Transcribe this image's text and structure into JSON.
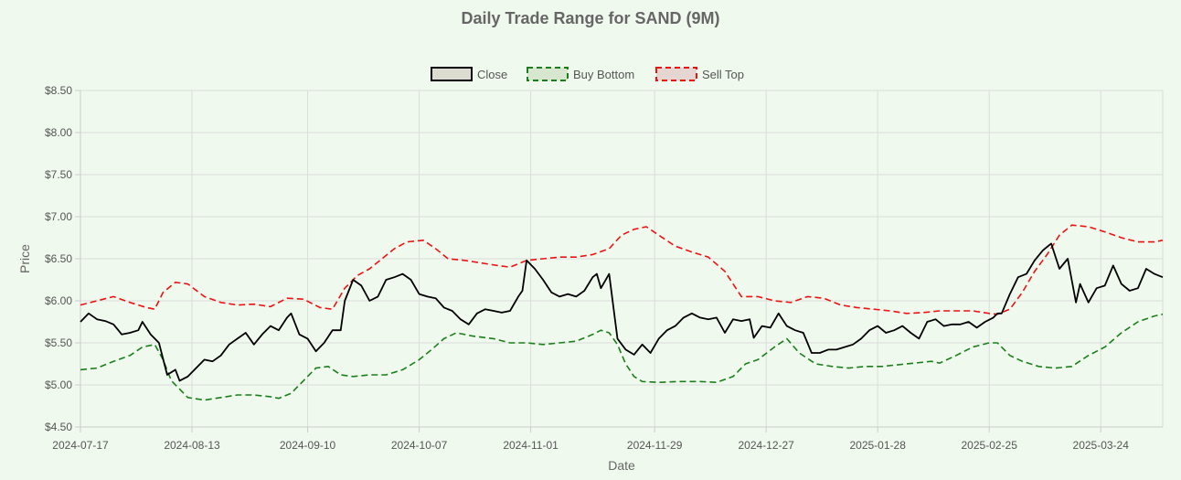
{
  "chart_data": {
    "type": "line",
    "title": "Daily Trade Range for SAND (9M)",
    "xlabel": "Date",
    "ylabel": "Price",
    "ylim": [
      4.5,
      8.5
    ],
    "y_ticks": [
      "$4.50",
      "$5.00",
      "$5.50",
      "$6.00",
      "$6.50",
      "$7.00",
      "$7.50",
      "$8.00",
      "$8.50"
    ],
    "y_tick_values": [
      4.5,
      5.0,
      5.5,
      6.0,
      6.5,
      7.0,
      7.5,
      8.0,
      8.5
    ],
    "x_tick_labels": [
      "2024-07-17",
      "2024-08-13",
      "2024-09-10",
      "2024-10-07",
      "2024-11-01",
      "2024-11-29",
      "2024-12-27",
      "2025-01-28",
      "2025-02-25",
      "2025-03-24"
    ],
    "x_tick_positions": [
      0,
      27,
      55,
      82,
      109,
      139,
      166,
      193,
      220,
      247
    ],
    "x_count": 262,
    "grid": true,
    "legend_position": "top",
    "colors": {
      "close": "#000000",
      "buy": "#1a7f1a",
      "sell": "#ee1111"
    },
    "series": [
      {
        "name": "Close",
        "key": "close",
        "points": [
          [
            0,
            5.75
          ],
          [
            2,
            5.85
          ],
          [
            4,
            5.78
          ],
          [
            6,
            5.76
          ],
          [
            8,
            5.72
          ],
          [
            10,
            5.6
          ],
          [
            12,
            5.62
          ],
          [
            14,
            5.65
          ],
          [
            15,
            5.75
          ],
          [
            17,
            5.6
          ],
          [
            19,
            5.5
          ],
          [
            21,
            5.12
          ],
          [
            23,
            5.18
          ],
          [
            24,
            5.05
          ],
          [
            26,
            5.1
          ],
          [
            28,
            5.2
          ],
          [
            30,
            5.3
          ],
          [
            32,
            5.28
          ],
          [
            34,
            5.35
          ],
          [
            36,
            5.48
          ],
          [
            38,
            5.55
          ],
          [
            40,
            5.62
          ],
          [
            42,
            5.48
          ],
          [
            44,
            5.6
          ],
          [
            46,
            5.7
          ],
          [
            48,
            5.65
          ],
          [
            50,
            5.8
          ],
          [
            51,
            5.85
          ],
          [
            53,
            5.6
          ],
          [
            55,
            5.55
          ],
          [
            57,
            5.4
          ],
          [
            59,
            5.5
          ],
          [
            61,
            5.65
          ],
          [
            63,
            5.65
          ],
          [
            64,
            6.0
          ],
          [
            66,
            6.25
          ],
          [
            68,
            6.18
          ],
          [
            70,
            6.0
          ],
          [
            72,
            6.05
          ],
          [
            74,
            6.25
          ],
          [
            76,
            6.28
          ],
          [
            78,
            6.32
          ],
          [
            80,
            6.25
          ],
          [
            82,
            6.08
          ],
          [
            84,
            6.05
          ],
          [
            86,
            6.03
          ],
          [
            88,
            5.92
          ],
          [
            90,
            5.88
          ],
          [
            92,
            5.78
          ],
          [
            94,
            5.72
          ],
          [
            96,
            5.85
          ],
          [
            98,
            5.9
          ],
          [
            100,
            5.88
          ],
          [
            102,
            5.86
          ],
          [
            104,
            5.88
          ],
          [
            106,
            6.05
          ],
          [
            107,
            6.12
          ],
          [
            108,
            6.48
          ],
          [
            110,
            6.38
          ],
          [
            112,
            6.25
          ],
          [
            114,
            6.1
          ],
          [
            116,
            6.05
          ],
          [
            118,
            6.08
          ],
          [
            120,
            6.05
          ],
          [
            122,
            6.12
          ],
          [
            124,
            6.28
          ],
          [
            125,
            6.32
          ],
          [
            126,
            6.15
          ],
          [
            128,
            6.32
          ],
          [
            130,
            5.55
          ],
          [
            132,
            5.42
          ],
          [
            134,
            5.36
          ],
          [
            136,
            5.48
          ],
          [
            138,
            5.38
          ],
          [
            140,
            5.55
          ],
          [
            142,
            5.65
          ],
          [
            144,
            5.7
          ],
          [
            146,
            5.8
          ],
          [
            148,
            5.85
          ],
          [
            150,
            5.8
          ],
          [
            152,
            5.78
          ],
          [
            154,
            5.8
          ],
          [
            156,
            5.62
          ],
          [
            158,
            5.78
          ],
          [
            160,
            5.76
          ],
          [
            162,
            5.78
          ],
          [
            163,
            5.56
          ],
          [
            165,
            5.7
          ],
          [
            167,
            5.68
          ],
          [
            169,
            5.85
          ],
          [
            171,
            5.7
          ],
          [
            173,
            5.65
          ],
          [
            175,
            5.62
          ],
          [
            177,
            5.38
          ],
          [
            179,
            5.38
          ],
          [
            181,
            5.42
          ],
          [
            183,
            5.42
          ],
          [
            185,
            5.45
          ],
          [
            187,
            5.48
          ],
          [
            189,
            5.55
          ],
          [
            191,
            5.65
          ],
          [
            193,
            5.7
          ],
          [
            195,
            5.62
          ],
          [
            197,
            5.65
          ],
          [
            199,
            5.7
          ],
          [
            201,
            5.62
          ],
          [
            203,
            5.55
          ],
          [
            205,
            5.75
          ],
          [
            207,
            5.78
          ],
          [
            209,
            5.7
          ],
          [
            211,
            5.72
          ],
          [
            213,
            5.72
          ],
          [
            215,
            5.75
          ],
          [
            217,
            5.68
          ],
          [
            219,
            5.75
          ],
          [
            221,
            5.8
          ],
          [
            222,
            5.85
          ],
          [
            223,
            5.85
          ],
          [
            225,
            6.08
          ],
          [
            227,
            6.28
          ],
          [
            229,
            6.32
          ],
          [
            231,
            6.48
          ],
          [
            233,
            6.6
          ],
          [
            235,
            6.68
          ],
          [
            237,
            6.38
          ],
          [
            239,
            6.5
          ],
          [
            241,
            5.98
          ],
          [
            242,
            6.2
          ],
          [
            244,
            5.98
          ],
          [
            246,
            6.15
          ],
          [
            248,
            6.18
          ],
          [
            250,
            6.42
          ],
          [
            252,
            6.2
          ],
          [
            254,
            6.12
          ],
          [
            256,
            6.15
          ],
          [
            258,
            6.38
          ],
          [
            260,
            6.32
          ],
          [
            262,
            6.28
          ]
        ]
      },
      {
        "name": "Buy Bottom",
        "key": "buy",
        "points": [
          [
            0,
            5.18
          ],
          [
            4,
            5.2
          ],
          [
            8,
            5.28
          ],
          [
            12,
            5.35
          ],
          [
            15,
            5.45
          ],
          [
            18,
            5.48
          ],
          [
            20,
            5.3
          ],
          [
            22,
            5.05
          ],
          [
            24,
            4.95
          ],
          [
            26,
            4.85
          ],
          [
            30,
            4.82
          ],
          [
            34,
            4.85
          ],
          [
            38,
            4.88
          ],
          [
            42,
            4.88
          ],
          [
            46,
            4.86
          ],
          [
            48,
            4.84
          ],
          [
            51,
            4.9
          ],
          [
            54,
            5.05
          ],
          [
            57,
            5.2
          ],
          [
            60,
            5.22
          ],
          [
            63,
            5.12
          ],
          [
            66,
            5.1
          ],
          [
            70,
            5.12
          ],
          [
            74,
            5.12
          ],
          [
            78,
            5.18
          ],
          [
            82,
            5.3
          ],
          [
            85,
            5.42
          ],
          [
            88,
            5.55
          ],
          [
            91,
            5.62
          ],
          [
            95,
            5.58
          ],
          [
            100,
            5.55
          ],
          [
            104,
            5.5
          ],
          [
            108,
            5.5
          ],
          [
            112,
            5.48
          ],
          [
            116,
            5.5
          ],
          [
            120,
            5.52
          ],
          [
            124,
            5.6
          ],
          [
            126,
            5.65
          ],
          [
            128,
            5.62
          ],
          [
            130,
            5.48
          ],
          [
            132,
            5.25
          ],
          [
            134,
            5.1
          ],
          [
            136,
            5.04
          ],
          [
            140,
            5.03
          ],
          [
            145,
            5.04
          ],
          [
            150,
            5.04
          ],
          [
            154,
            5.03
          ],
          [
            158,
            5.1
          ],
          [
            161,
            5.25
          ],
          [
            164,
            5.3
          ],
          [
            168,
            5.45
          ],
          [
            171,
            5.55
          ],
          [
            174,
            5.38
          ],
          [
            178,
            5.25
          ],
          [
            182,
            5.22
          ],
          [
            186,
            5.2
          ],
          [
            190,
            5.22
          ],
          [
            194,
            5.22
          ],
          [
            198,
            5.24
          ],
          [
            202,
            5.26
          ],
          [
            206,
            5.28
          ],
          [
            208,
            5.26
          ],
          [
            212,
            5.35
          ],
          [
            216,
            5.45
          ],
          [
            220,
            5.5
          ],
          [
            222,
            5.5
          ],
          [
            225,
            5.35
          ],
          [
            228,
            5.28
          ],
          [
            232,
            5.22
          ],
          [
            236,
            5.2
          ],
          [
            240,
            5.22
          ],
          [
            244,
            5.35
          ],
          [
            248,
            5.45
          ],
          [
            252,
            5.62
          ],
          [
            256,
            5.75
          ],
          [
            260,
            5.82
          ],
          [
            262,
            5.84
          ]
        ]
      },
      {
        "name": "Sell Top",
        "key": "sell",
        "points": [
          [
            0,
            5.95
          ],
          [
            4,
            6.0
          ],
          [
            8,
            6.05
          ],
          [
            12,
            5.98
          ],
          [
            16,
            5.92
          ],
          [
            18,
            5.9
          ],
          [
            20,
            6.1
          ],
          [
            23,
            6.22
          ],
          [
            26,
            6.2
          ],
          [
            30,
            6.05
          ],
          [
            34,
            5.98
          ],
          [
            38,
            5.95
          ],
          [
            42,
            5.96
          ],
          [
            46,
            5.93
          ],
          [
            50,
            6.03
          ],
          [
            54,
            6.02
          ],
          [
            58,
            5.92
          ],
          [
            61,
            5.9
          ],
          [
            64,
            6.15
          ],
          [
            67,
            6.3
          ],
          [
            70,
            6.38
          ],
          [
            73,
            6.5
          ],
          [
            76,
            6.62
          ],
          [
            79,
            6.7
          ],
          [
            83,
            6.72
          ],
          [
            86,
            6.62
          ],
          [
            89,
            6.5
          ],
          [
            93,
            6.48
          ],
          [
            97,
            6.45
          ],
          [
            101,
            6.42
          ],
          [
            104,
            6.4
          ],
          [
            108,
            6.48
          ],
          [
            112,
            6.5
          ],
          [
            116,
            6.52
          ],
          [
            120,
            6.52
          ],
          [
            124,
            6.55
          ],
          [
            128,
            6.62
          ],
          [
            131,
            6.78
          ],
          [
            134,
            6.85
          ],
          [
            137,
            6.88
          ],
          [
            140,
            6.78
          ],
          [
            144,
            6.65
          ],
          [
            148,
            6.58
          ],
          [
            152,
            6.52
          ],
          [
            156,
            6.35
          ],
          [
            158,
            6.2
          ],
          [
            160,
            6.05
          ],
          [
            164,
            6.05
          ],
          [
            168,
            6.0
          ],
          [
            172,
            5.98
          ],
          [
            176,
            6.05
          ],
          [
            180,
            6.03
          ],
          [
            184,
            5.95
          ],
          [
            188,
            5.92
          ],
          [
            192,
            5.9
          ],
          [
            196,
            5.88
          ],
          [
            200,
            5.85
          ],
          [
            204,
            5.86
          ],
          [
            208,
            5.88
          ],
          [
            212,
            5.88
          ],
          [
            216,
            5.88
          ],
          [
            220,
            5.85
          ],
          [
            222,
            5.84
          ],
          [
            225,
            5.9
          ],
          [
            228,
            6.1
          ],
          [
            231,
            6.35
          ],
          [
            234,
            6.55
          ],
          [
            237,
            6.78
          ],
          [
            240,
            6.9
          ],
          [
            244,
            6.88
          ],
          [
            248,
            6.82
          ],
          [
            252,
            6.75
          ],
          [
            256,
            6.7
          ],
          [
            260,
            6.7
          ],
          [
            262,
            6.72
          ]
        ]
      }
    ]
  }
}
